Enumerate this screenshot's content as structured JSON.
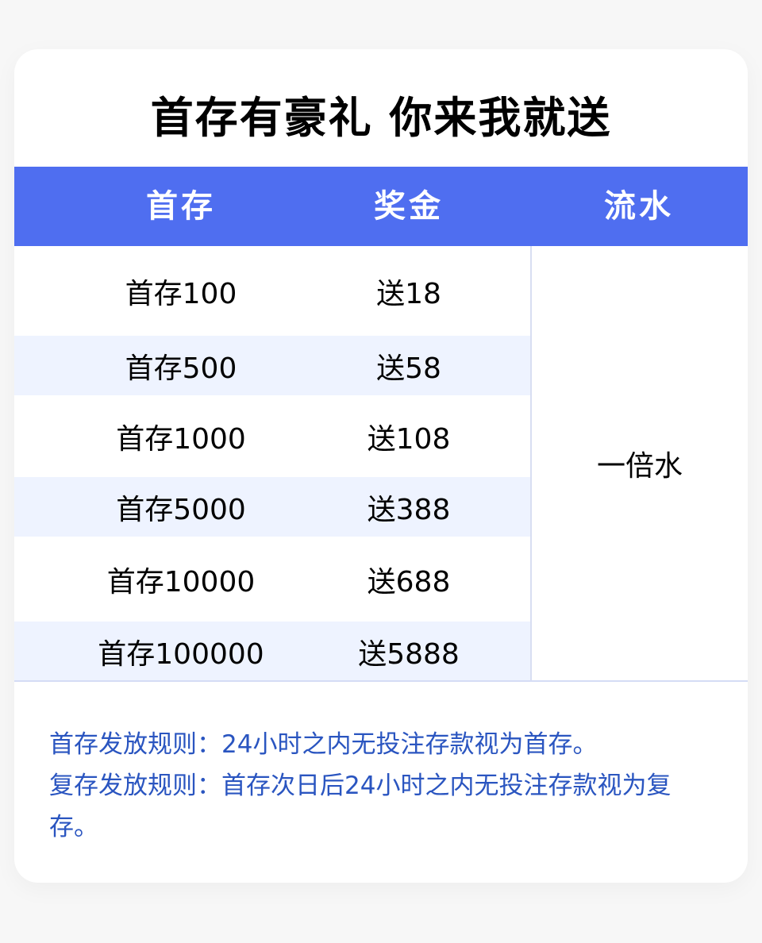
{
  "title": "首存有豪礼 你来我就送",
  "header": {
    "col1": "首存",
    "col2": "奖金",
    "col3": "流水"
  },
  "rows": [
    {
      "deposit": "首存100",
      "bonus": "送18"
    },
    {
      "deposit": "首存500",
      "bonus": "送58"
    },
    {
      "deposit": "首存1000",
      "bonus": "送108"
    },
    {
      "deposit": "首存5000",
      "bonus": "送388"
    },
    {
      "deposit": "首存10000",
      "bonus": "送688"
    },
    {
      "deposit": "首存100000",
      "bonus": "送5888"
    }
  ],
  "wager": "一倍水",
  "rules": [
    "首存发放规则：24小时之内无投注存款视为首存。",
    "复存发放规则：首存次日后24小时之内无投注存款视为复存。"
  ],
  "colors": {
    "header": "#4f6ef0",
    "row_tint": "#eef3ff",
    "rules_text": "#2a55c0"
  }
}
